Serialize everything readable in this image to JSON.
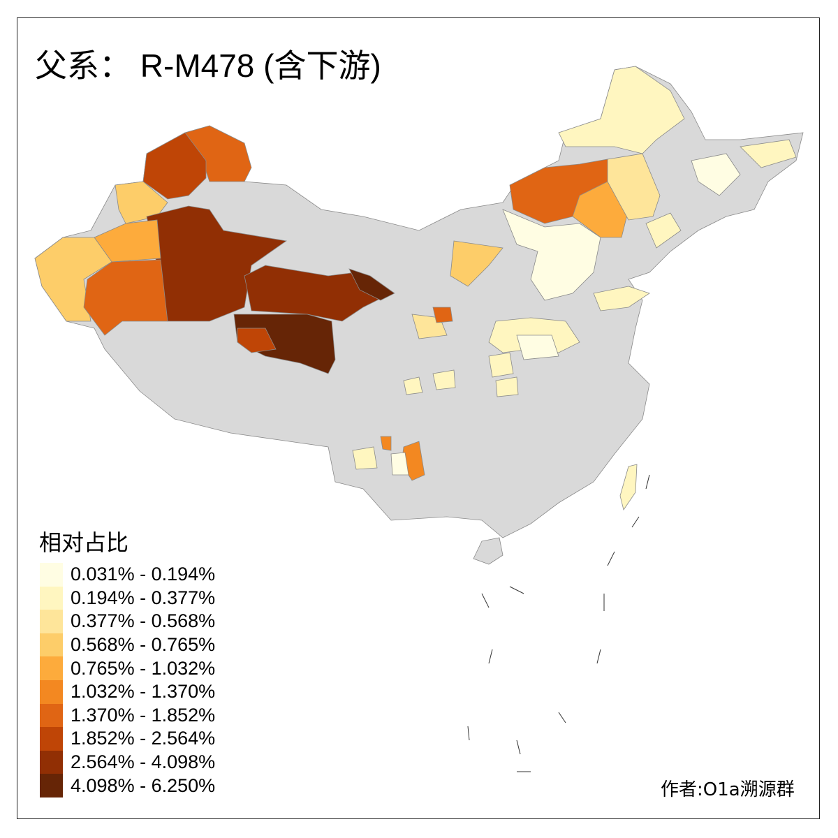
{
  "title": {
    "prefix": "父系：",
    "haplogroup": "R-M478 (含下游)"
  },
  "legend": {
    "title": "相对占比",
    "items": [
      {
        "label": "0.031% - 0.194%",
        "color": "#FFFDE3"
      },
      {
        "label": "0.194% - 0.377%",
        "color": "#FFF6C0"
      },
      {
        "label": "0.377% - 0.568%",
        "color": "#FEE59A"
      },
      {
        "label": "0.568% - 0.765%",
        "color": "#FDCD69"
      },
      {
        "label": "0.765% - 1.032%",
        "color": "#FDAB3C"
      },
      {
        "label": "1.032% - 1.370%",
        "color": "#F38821"
      },
      {
        "label": "1.370% - 1.852%",
        "color": "#E06514"
      },
      {
        "label": "1.852% - 2.564%",
        "color": "#BF4506"
      },
      {
        "label": "2.564% - 4.098%",
        "color": "#912F04"
      },
      {
        "label": "4.098% - 6.250%",
        "color": "#662506"
      }
    ]
  },
  "no_data_color": "#D9D9D9",
  "credit": "作者:O1a溯源群"
}
